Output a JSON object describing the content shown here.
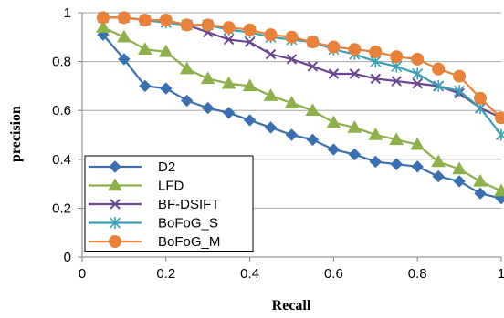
{
  "chart_data": {
    "type": "line",
    "title": "",
    "xlabel": "Recall",
    "ylabel": "precision",
    "xlim": [
      0,
      1
    ],
    "ylim": [
      0,
      1
    ],
    "x_ticks": [
      "0",
      "0.2",
      "0.4",
      "0.6",
      "0.8",
      "1"
    ],
    "y_ticks": [
      "0",
      "0.2",
      "0.4",
      "0.6",
      "0.8",
      "1"
    ],
    "grid": "horizontal",
    "legend_position": "bottom-left",
    "x": [
      0.05,
      0.1,
      0.15,
      0.2,
      0.25,
      0.3,
      0.35,
      0.4,
      0.45,
      0.5,
      0.55,
      0.6,
      0.65,
      0.7,
      0.75,
      0.8,
      0.85,
      0.9,
      0.95,
      1.0
    ],
    "series": [
      {
        "name": "D2",
        "color": "#3a6fb0",
        "marker": "diamond",
        "values": [
          0.91,
          0.81,
          0.7,
          0.69,
          0.64,
          0.61,
          0.59,
          0.56,
          0.53,
          0.5,
          0.48,
          0.44,
          0.42,
          0.39,
          0.38,
          0.37,
          0.33,
          0.31,
          0.26,
          0.24
        ]
      },
      {
        "name": "LFD",
        "color": "#8db04a",
        "marker": "triangle",
        "values": [
          0.94,
          0.9,
          0.85,
          0.84,
          0.77,
          0.73,
          0.71,
          0.7,
          0.66,
          0.63,
          0.6,
          0.55,
          0.53,
          0.5,
          0.48,
          0.46,
          0.39,
          0.36,
          0.31,
          0.27
        ]
      },
      {
        "name": "BF-DSIFT",
        "color": "#6a4590",
        "marker": "x",
        "values": [
          0.98,
          0.98,
          0.97,
          0.96,
          0.95,
          0.92,
          0.89,
          0.88,
          0.83,
          0.81,
          0.78,
          0.75,
          0.75,
          0.73,
          0.72,
          0.71,
          0.7,
          0.67,
          0.61,
          0.57
        ]
      },
      {
        "name": "BoFoG_S",
        "color": "#3aa0b8",
        "marker": "asterisk",
        "values": [
          0.98,
          0.98,
          0.97,
          0.96,
          0.95,
          0.95,
          0.93,
          0.92,
          0.9,
          0.89,
          0.88,
          0.85,
          0.83,
          0.8,
          0.78,
          0.75,
          0.7,
          0.68,
          0.61,
          0.5
        ]
      },
      {
        "name": "BoFoG_M",
        "color": "#e8823a",
        "marker": "circle",
        "values": [
          0.98,
          0.98,
          0.97,
          0.97,
          0.95,
          0.95,
          0.94,
          0.93,
          0.91,
          0.9,
          0.88,
          0.86,
          0.85,
          0.84,
          0.82,
          0.81,
          0.77,
          0.74,
          0.65,
          0.57
        ]
      }
    ]
  }
}
